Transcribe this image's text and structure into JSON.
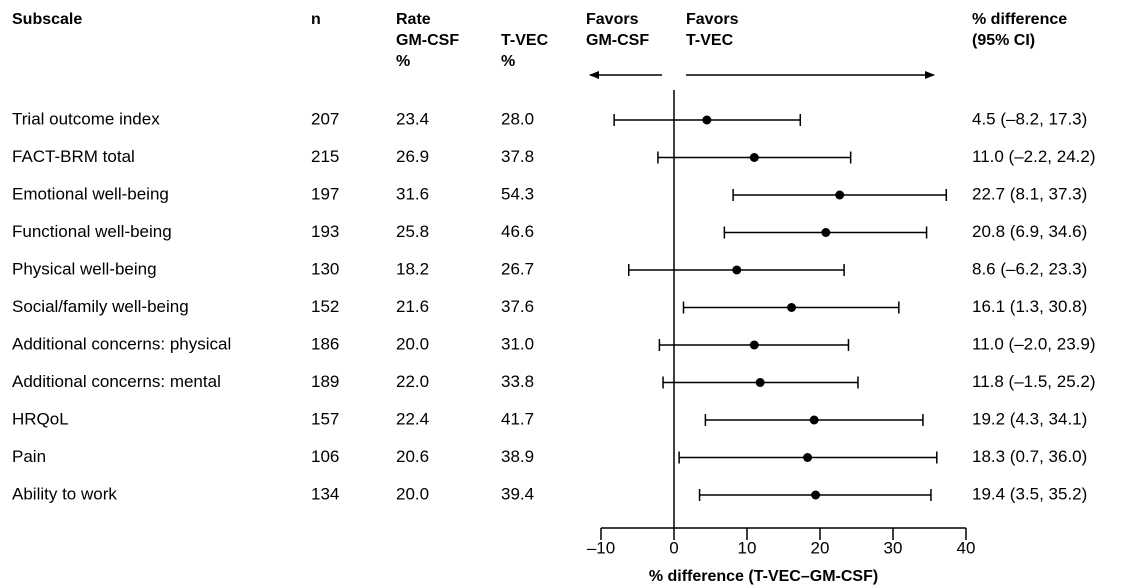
{
  "chart_data": {
    "type": "forest",
    "headers": {
      "subscale": "Subscale",
      "n": "n",
      "rate_gmcsf": [
        "Rate",
        "GM-CSF",
        "%"
      ],
      "rate_tvec": [
        "T-VEC",
        "%"
      ],
      "favors_left": [
        "Favors",
        "GM-CSF"
      ],
      "favors_right": [
        "Favors",
        "T-VEC"
      ],
      "difference": [
        "% difference",
        "(95% CI)"
      ]
    },
    "categories": [
      "Trial outcome index",
      "FACT-BRM total",
      "Emotional well-being",
      "Functional well-being",
      "Physical well-being",
      "Social/family well-being",
      "Additional concerns: physical",
      "Additional concerns: mental",
      "HRQoL",
      "Pain",
      "Ability to work"
    ],
    "n": [
      207,
      215,
      197,
      193,
      130,
      152,
      186,
      189,
      157,
      106,
      134
    ],
    "rate_gmcsf": [
      "23.4",
      "26.9",
      "31.6",
      "25.8",
      "18.2",
      "21.6",
      "20.0",
      "22.0",
      "22.4",
      "20.6",
      "20.0"
    ],
    "rate_tvec": [
      "28.0",
      "37.8",
      "54.3",
      "46.6",
      "26.7",
      "37.6",
      "31.0",
      "33.8",
      "41.7",
      "38.9",
      "39.4"
    ],
    "values": [
      4.5,
      11.0,
      22.7,
      20.8,
      8.6,
      16.1,
      11.0,
      11.8,
      19.2,
      18.3,
      19.4
    ],
    "ci_low": [
      -8.2,
      -2.2,
      8.1,
      6.9,
      -6.2,
      1.3,
      -2.0,
      -1.5,
      4.3,
      0.7,
      3.5
    ],
    "ci_high": [
      17.3,
      24.2,
      37.3,
      34.6,
      23.3,
      30.8,
      23.9,
      25.2,
      34.1,
      36.0,
      35.2
    ],
    "value_labels": [
      "4.5 (–8.2, 17.3)",
      "11.0 (–2.2, 24.2)",
      "22.7 (8.1, 37.3)",
      "20.8 (6.9, 34.6)",
      "8.6 (–6.2, 23.3)",
      "16.1 (1.3, 30.8)",
      "11.0 (–2.0, 23.9)",
      "11.8 (–1.5, 25.2)",
      "19.2 (4.3, 34.1)",
      "18.3 (0.7, 36.0)",
      "19.4 (3.5, 35.2)"
    ],
    "xlabel": "% difference (T-VEC–GM-CSF)",
    "xlim": [
      -10,
      40
    ],
    "xticks": [
      {
        "value": -10,
        "label": "–10"
      },
      0,
      10,
      20,
      30,
      40
    ],
    "color": "#000000"
  }
}
